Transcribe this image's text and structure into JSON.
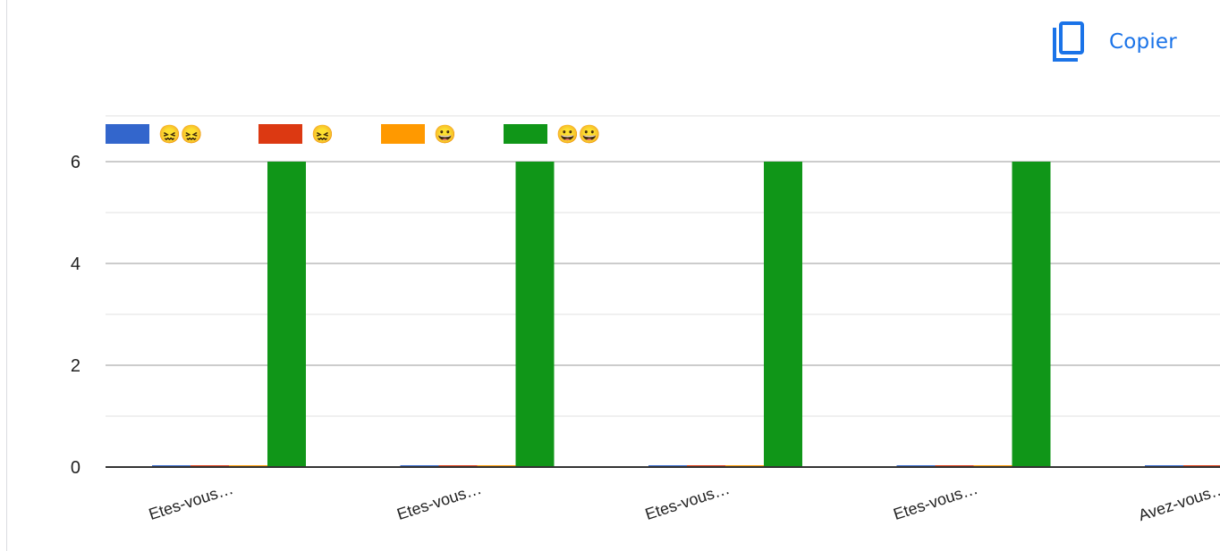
{
  "toolbar": {
    "copy_label": "Copier",
    "copy_icon": "copy-icon"
  },
  "colors": {
    "accent": "#1a73e8"
  },
  "chart_data": {
    "type": "bar",
    "categories": [
      "Etes-vous…",
      "Etes-vous…",
      "Etes-vous…",
      "Etes-vous…",
      "Avez-vous…"
    ],
    "series": [
      {
        "name": "😖😖",
        "color": "#3366cc",
        "values": [
          0,
          0,
          0,
          0,
          0
        ]
      },
      {
        "name": "😖",
        "color": "#dc3912",
        "values": [
          0,
          0,
          0,
          0,
          0
        ]
      },
      {
        "name": "😀",
        "color": "#ff9900",
        "values": [
          0,
          0,
          0,
          0,
          0
        ]
      },
      {
        "name": "😀😀",
        "color": "#109618",
        "values": [
          6,
          6,
          6,
          6,
          0
        ]
      }
    ],
    "yticks": [
      0,
      2,
      4,
      6
    ],
    "ylim": [
      0,
      6.9
    ],
    "xlabel": "",
    "ylabel": "",
    "legend_position": "top",
    "grid": true
  }
}
